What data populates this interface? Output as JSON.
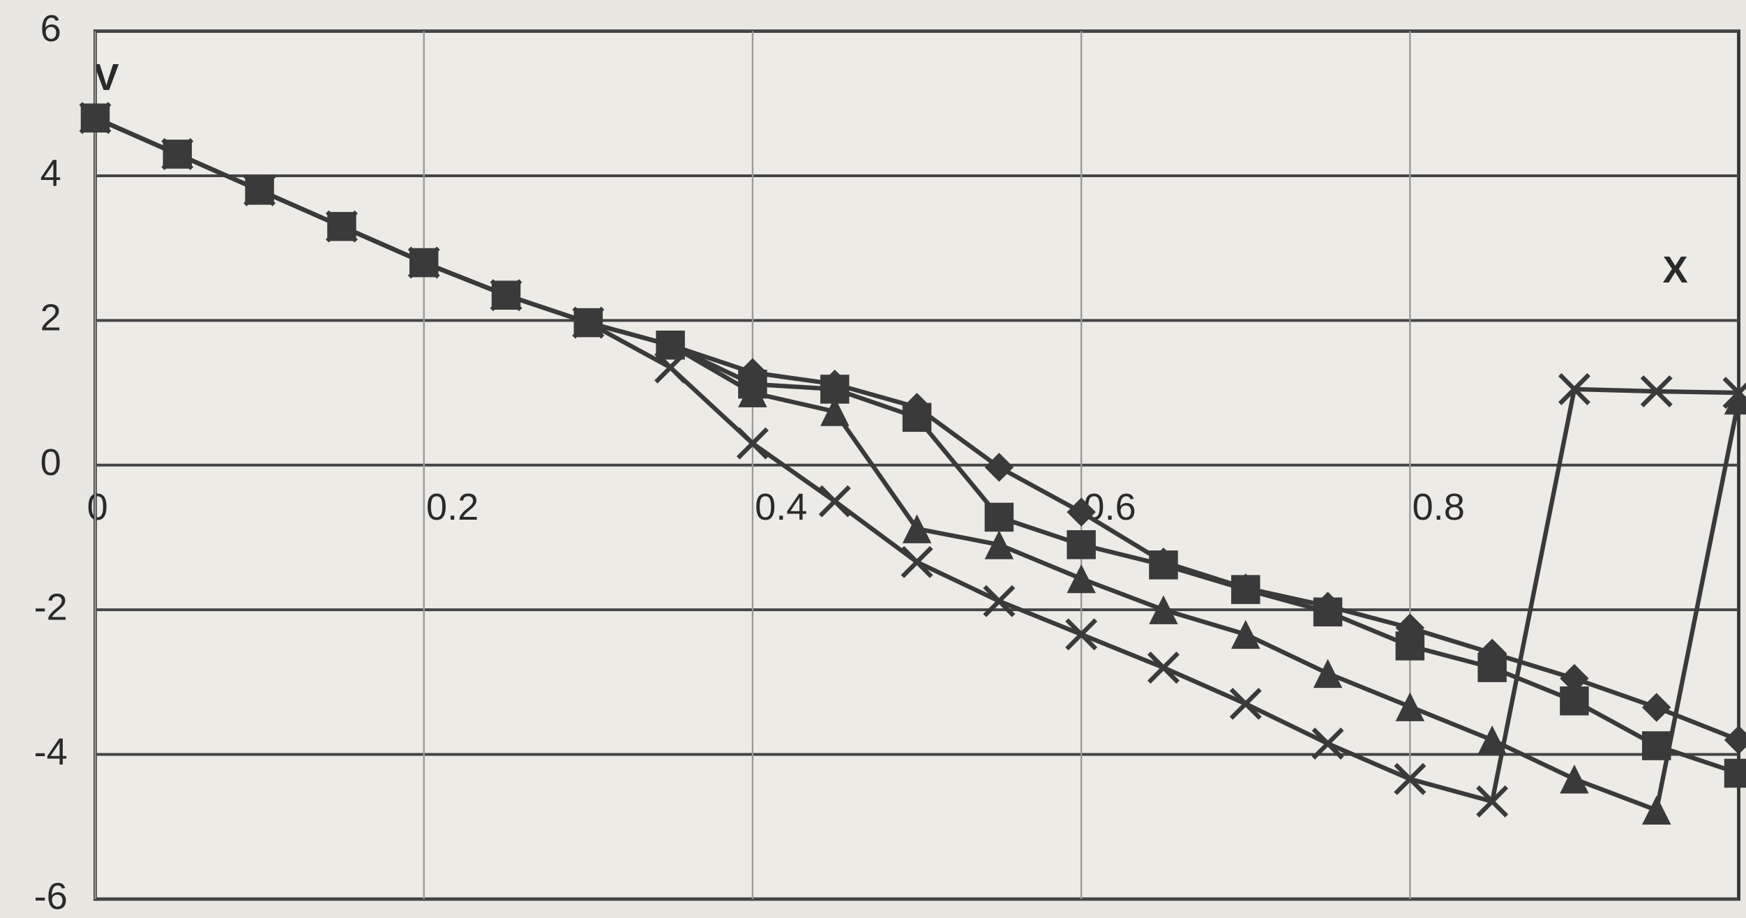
{
  "chart_data": {
    "type": "line",
    "x_label": "X",
    "y_label": "V",
    "x": [
      0,
      0.05,
      0.1,
      0.15,
      0.2,
      0.25,
      0.3,
      0.35,
      0.4,
      0.45,
      0.5,
      0.55,
      0.6,
      0.65,
      0.7,
      0.75,
      0.8,
      0.85,
      0.9,
      0.95,
      1.0
    ],
    "series": [
      {
        "marker": "diamond",
        "color": "#3a3a3a",
        "values": [
          4.8,
          4.3,
          3.8,
          3.3,
          2.8,
          2.35,
          1.97,
          1.66,
          1.28,
          1.12,
          0.8,
          -0.03,
          -0.65,
          -1.34,
          -1.7,
          -1.95,
          -2.25,
          -2.6,
          -2.95,
          -3.35,
          -3.8
        ]
      },
      {
        "marker": "square",
        "color": "#3a3a3a",
        "values": [
          4.8,
          4.3,
          3.8,
          3.3,
          2.8,
          2.35,
          1.97,
          1.66,
          1.12,
          1.05,
          0.66,
          -0.72,
          -1.1,
          -1.38,
          -1.72,
          -2.03,
          -2.5,
          -2.8,
          -3.26,
          -3.88,
          -4.26
        ]
      },
      {
        "marker": "triangle",
        "color": "#3a3a3a",
        "values": [
          4.8,
          4.3,
          3.8,
          3.3,
          2.8,
          2.35,
          1.97,
          1.66,
          1.0,
          0.74,
          -0.88,
          -1.1,
          -1.57,
          -2.0,
          -2.34,
          -2.88,
          -3.34,
          -3.8,
          -4.34,
          -4.77,
          0.9
        ]
      },
      {
        "marker": "x",
        "color": "#3a3a3a",
        "values": [
          4.8,
          4.3,
          3.8,
          3.3,
          2.8,
          2.35,
          1.97,
          1.35,
          0.3,
          -0.5,
          -1.34,
          -1.88,
          -2.34,
          -2.8,
          -3.3,
          -3.85,
          -4.34,
          -4.65,
          1.05,
          1.02,
          1.0
        ]
      }
    ],
    "xlim": [
      0,
      1
    ],
    "xticks": [
      0,
      0.2,
      0.4,
      0.6,
      0.8
    ],
    "ylim": [
      -6,
      6
    ],
    "yticks": [
      -6,
      -4,
      -2,
      0,
      2,
      4,
      6
    ],
    "grid": true
  }
}
